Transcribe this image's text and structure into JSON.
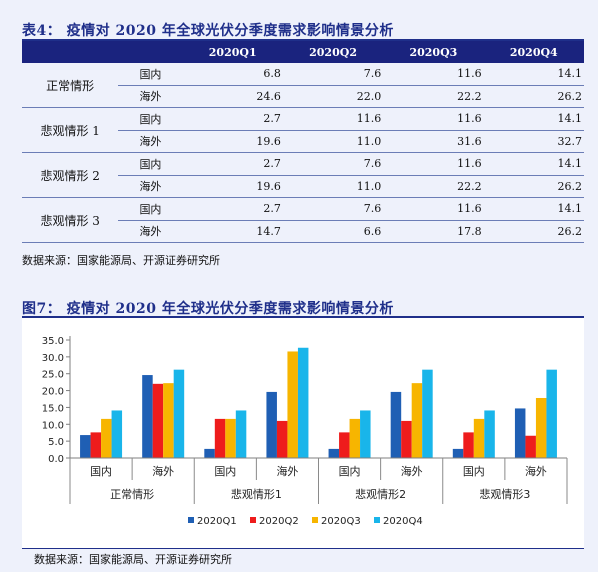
{
  "table": {
    "title": "表4：  疫情对 2020 年全球光伏分季度需求影响情景分析",
    "headers": [
      "",
      "",
      "2020Q1",
      "2020Q2",
      "2020Q3",
      "2020Q4"
    ],
    "groups": [
      {
        "name": "正常情形",
        "rows": [
          {
            "region": "国内",
            "values": [
              "6.8",
              "7.6",
              "11.6",
              "14.1"
            ]
          },
          {
            "region": "海外",
            "values": [
              "24.6",
              "22.0",
              "22.2",
              "26.2"
            ]
          }
        ]
      },
      {
        "name": "悲观情形 1",
        "rows": [
          {
            "region": "国内",
            "values": [
              "2.7",
              "11.6",
              "11.6",
              "14.1"
            ]
          },
          {
            "region": "海外",
            "values": [
              "19.6",
              "11.0",
              "31.6",
              "32.7"
            ]
          }
        ]
      },
      {
        "name": "悲观情形 2",
        "rows": [
          {
            "region": "国内",
            "values": [
              "2.7",
              "7.6",
              "11.6",
              "14.1"
            ]
          },
          {
            "region": "海外",
            "values": [
              "19.6",
              "11.0",
              "22.2",
              "26.2"
            ]
          }
        ]
      },
      {
        "name": "悲观情形 3",
        "rows": [
          {
            "region": "国内",
            "values": [
              "2.7",
              "7.6",
              "11.6",
              "14.1"
            ]
          },
          {
            "region": "海外",
            "values": [
              "14.7",
              "6.6",
              "17.8",
              "26.2"
            ]
          }
        ]
      }
    ],
    "source": "数据来源：国家能源局、开源证券研究所"
  },
  "figure": {
    "title": "图7：  疫情对 2020 年全球光伏分季度需求影响情景分析",
    "source": "数据来源：国家能源局、开源证券研究所"
  },
  "chart_data": {
    "type": "bar",
    "title": "",
    "xlabel": "",
    "ylabel": "",
    "ylim": [
      0,
      35
    ],
    "yticks": [
      "0.0",
      "5.0",
      "10.0",
      "15.0",
      "20.0",
      "25.0",
      "30.0",
      "35.0"
    ],
    "grid": false,
    "legend_position": "bottom",
    "groups": [
      "正常情形",
      "悲观情形1",
      "悲观情形2",
      "悲观情形3"
    ],
    "categories": [
      "国内",
      "海外",
      "国内",
      "海外",
      "国内",
      "海外",
      "国内",
      "海外"
    ],
    "series": [
      {
        "name": "2020Q1",
        "color": "#1f5fb4",
        "values": [
          6.8,
          24.6,
          2.7,
          19.6,
          2.7,
          19.6,
          2.7,
          14.7
        ]
      },
      {
        "name": "2020Q2",
        "color": "#ee1c1c",
        "values": [
          7.6,
          22.0,
          11.6,
          11.0,
          7.6,
          11.0,
          7.6,
          6.6
        ]
      },
      {
        "name": "2020Q3",
        "color": "#f7b500",
        "values": [
          11.6,
          22.2,
          11.6,
          31.6,
          11.6,
          22.2,
          11.6,
          17.8
        ]
      },
      {
        "name": "2020Q4",
        "color": "#19b5ea",
        "values": [
          14.1,
          26.2,
          14.1,
          32.7,
          14.1,
          26.2,
          14.1,
          26.2
        ]
      }
    ]
  }
}
